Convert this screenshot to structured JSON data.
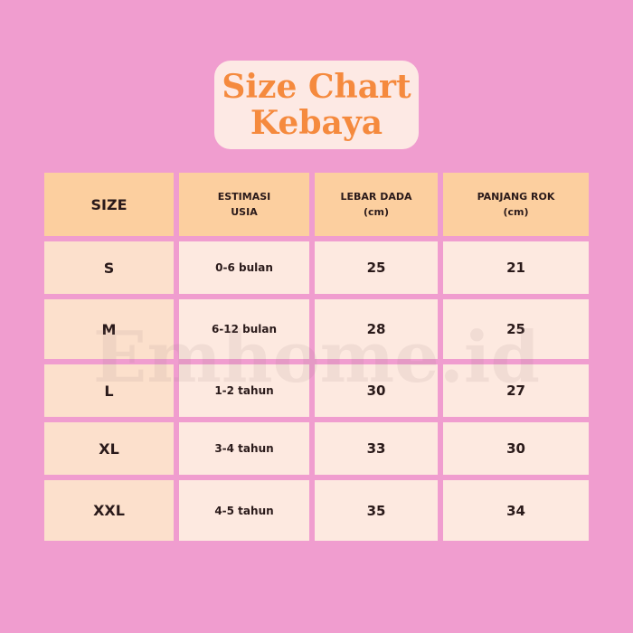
{
  "title": {
    "line1": "Size Chart",
    "line2": "Kebaya"
  },
  "watermark": "Emhome.id",
  "table": {
    "headers": [
      {
        "l1": "SIZE",
        "l2": ""
      },
      {
        "l1": "ESTIMASI",
        "l2": "USIA"
      },
      {
        "l1": "LEBAR DADA",
        "l2": "(cm)"
      },
      {
        "l1": "PANJANG ROK",
        "l2": "(cm)"
      }
    ],
    "rows": [
      [
        "S",
        "0-6 bulan",
        "25",
        "21"
      ],
      [
        "M",
        "6-12 bulan",
        "28",
        "25"
      ],
      [
        "L",
        "1-2 tahun",
        "30",
        "27"
      ],
      [
        "XL",
        "3-4 tahun",
        "33",
        "30"
      ],
      [
        "XXL",
        "4-5 tahun",
        "35",
        "34"
      ]
    ]
  },
  "colors": {
    "background": "#f09dcf",
    "header": "#fccf9f",
    "size_column": "#fce0cc",
    "cell": "#fde9e0",
    "title": "#f58a3e"
  }
}
